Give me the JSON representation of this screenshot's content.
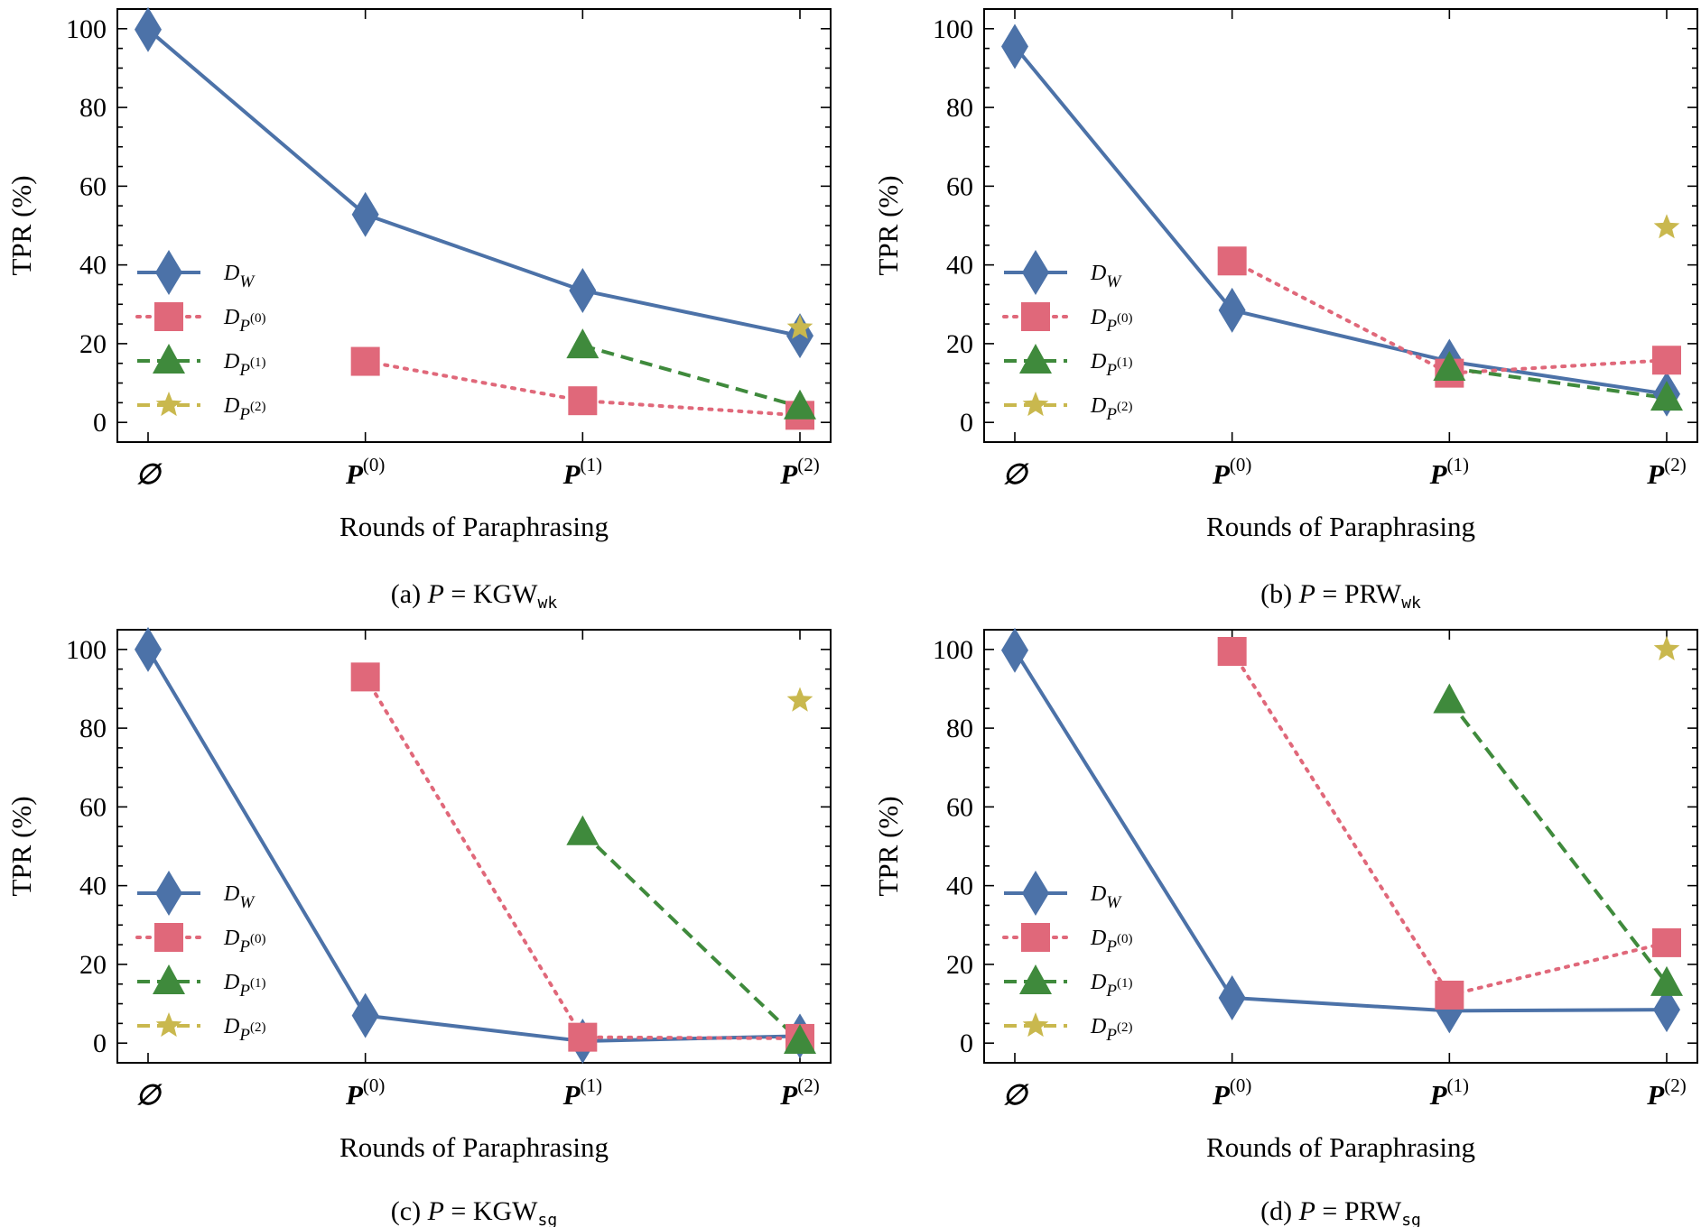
{
  "figure": {
    "legend_entries": [
      {
        "key": "dw",
        "base": "D",
        "sub": "W",
        "sup": ""
      },
      {
        "key": "dp0",
        "base": "D",
        "sub": "P",
        "sup": "(0)"
      },
      {
        "key": "dp1",
        "base": "D",
        "sub": "P",
        "sup": "(1)"
      },
      {
        "key": "dp2",
        "base": "D",
        "sub": "P",
        "sup": "(2)"
      }
    ],
    "colors": {
      "dw": "#4c72a8",
      "dp0": "#e0687a",
      "dp1": "#3f8a3c",
      "dp2": "#c9b84e"
    }
  },
  "chart_data": [
    {
      "type": "line",
      "caption": "(a) P = KGW",
      "caption_sub": "wk",
      "caption_prefix": "(a)",
      "caption_p": "P",
      "caption_eq": " = KGW",
      "ylabel": "TPR (%)",
      "xlabel": "Rounds of Paraphrasing",
      "categories": [
        "∅",
        "P(0)",
        "P(1)",
        "P(2)"
      ],
      "yticks": [
        0,
        20,
        40,
        60,
        80,
        100
      ],
      "ylim": [
        -5,
        105
      ],
      "series": [
        {
          "key": "dw",
          "values": [
            99.8,
            52.8,
            33.5,
            22.0
          ]
        },
        {
          "key": "dp0",
          "values": [
            null,
            15.5,
            5.5,
            1.8
          ]
        },
        {
          "key": "dp1",
          "values": [
            null,
            null,
            19.5,
            4.0
          ]
        },
        {
          "key": "dp2",
          "values": [
            null,
            null,
            null,
            24.0
          ]
        }
      ]
    },
    {
      "type": "line",
      "caption": "(b) P = PRW",
      "caption_sub": "wk",
      "caption_prefix": "(b)",
      "caption_p": "P",
      "caption_eq": " = PRW",
      "ylabel": "TPR (%)",
      "xlabel": "Rounds of Paraphrasing",
      "categories": [
        "∅",
        "P(0)",
        "P(1)",
        "P(2)"
      ],
      "yticks": [
        0,
        20,
        40,
        60,
        80,
        100
      ],
      "ylim": [
        -5,
        105
      ],
      "series": [
        {
          "key": "dw",
          "values": [
            95.5,
            28.5,
            15.5,
            7.2
          ]
        },
        {
          "key": "dp0",
          "values": [
            null,
            41.0,
            12.5,
            15.8
          ]
        },
        {
          "key": "dp1",
          "values": [
            null,
            null,
            13.8,
            6.2
          ]
        },
        {
          "key": "dp2",
          "values": [
            null,
            null,
            null,
            49.5
          ]
        }
      ]
    },
    {
      "type": "line",
      "caption": "(c) P = KGW",
      "caption_sub": "sg",
      "caption_prefix": "(c)",
      "caption_p": "P",
      "caption_eq": " = KGW",
      "ylabel": "TPR (%)",
      "xlabel": "Rounds of Paraphrasing",
      "categories": [
        "∅",
        "P(0)",
        "P(1)",
        "P(2)"
      ],
      "yticks": [
        0,
        20,
        40,
        60,
        80,
        100
      ],
      "ylim": [
        -5,
        105
      ],
      "series": [
        {
          "key": "dw",
          "values": [
            100.0,
            7.0,
            0.5,
            1.8
          ]
        },
        {
          "key": "dp0",
          "values": [
            null,
            93.0,
            1.5,
            1.2
          ]
        },
        {
          "key": "dp1",
          "values": [
            null,
            null,
            53.5,
            0.5
          ]
        },
        {
          "key": "dp2",
          "values": [
            null,
            null,
            null,
            87.0
          ]
        }
      ]
    },
    {
      "type": "line",
      "caption": "(d) P = PRW",
      "caption_sub": "sg",
      "caption_prefix": "(d)",
      "caption_p": "P",
      "caption_eq": " = PRW",
      "ylabel": "TPR (%)",
      "xlabel": "Rounds of Paraphrasing",
      "categories": [
        "∅",
        "P(0)",
        "P(1)",
        "P(2)"
      ],
      "yticks": [
        0,
        20,
        40,
        60,
        80,
        100
      ],
      "ylim": [
        -5,
        105
      ],
      "series": [
        {
          "key": "dw",
          "values": [
            99.8,
            11.5,
            8.2,
            8.5
          ]
        },
        {
          "key": "dp0",
          "values": [
            null,
            99.5,
            12.2,
            25.5
          ]
        },
        {
          "key": "dp1",
          "values": [
            null,
            null,
            87.0,
            15.2
          ]
        },
        {
          "key": "dp2",
          "values": [
            null,
            null,
            null,
            100.0
          ]
        }
      ]
    }
  ]
}
